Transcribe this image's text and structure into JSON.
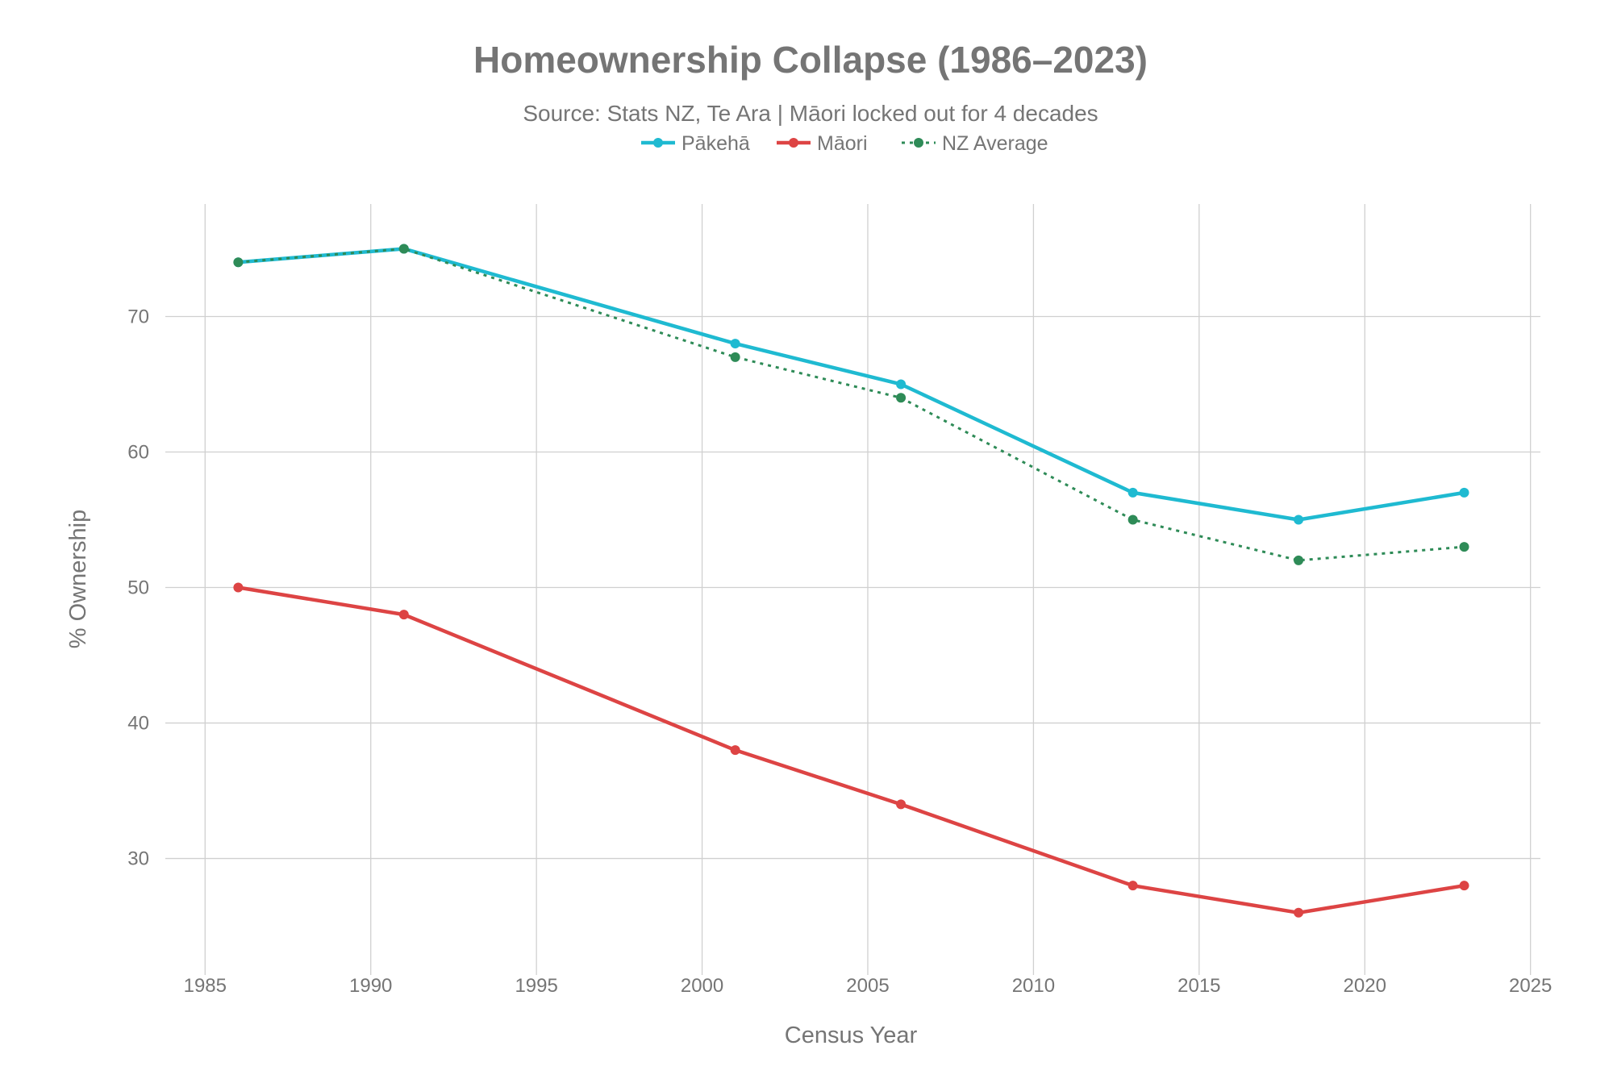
{
  "chart_data": {
    "type": "line",
    "title": "Homeownership Collapse (1986–2023)",
    "subtitle": "Source: Stats NZ, Te Ara | Māori locked out for 4 decades",
    "xlabel": "Census Year",
    "ylabel": "% Ownership",
    "xlim": [
      1983.8,
      2025.3
    ],
    "ylim": [
      22,
      78.3
    ],
    "xticks": [
      1985,
      1990,
      1995,
      2000,
      2005,
      2010,
      2015,
      2020,
      2025
    ],
    "yticks": [
      30,
      40,
      50,
      60,
      70
    ],
    "grid": true,
    "legend_position": "top-center",
    "x": [
      1986,
      1991,
      2001,
      2006,
      2013,
      2018,
      2023
    ],
    "series": [
      {
        "name": "Pākehā",
        "color": "#1fbad1",
        "dash": "solid",
        "values": [
          74,
          75,
          68,
          65,
          57,
          55,
          57
        ]
      },
      {
        "name": "Māori",
        "color": "#dd4444",
        "dash": "solid",
        "values": [
          50,
          48,
          38,
          34,
          28,
          26,
          28
        ]
      },
      {
        "name": "NZ Average",
        "color": "#2e8b57",
        "dash": "dot",
        "values": [
          74,
          75,
          67,
          64,
          55,
          52,
          53
        ]
      }
    ]
  }
}
